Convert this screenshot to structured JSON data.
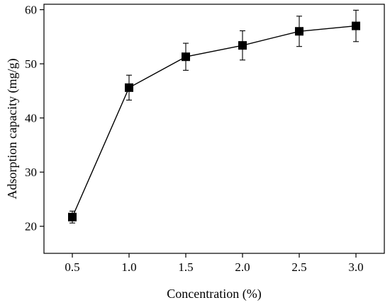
{
  "chart_data": {
    "type": "line",
    "xlabel": "Concentration (%)",
    "ylabel": "Adsorption capacity (mg/g)",
    "xlim": [
      0.25,
      3.25
    ],
    "ylim": [
      15,
      61
    ],
    "xticks": [
      0.5,
      1.0,
      1.5,
      2.0,
      2.5,
      3.0
    ],
    "xtick_labels": [
      "0.5",
      "1.0",
      "1.5",
      "2.0",
      "2.5",
      "3.0"
    ],
    "yticks": [
      20,
      30,
      40,
      50,
      60
    ],
    "ytick_labels": [
      "20",
      "30",
      "40",
      "50",
      "60"
    ],
    "grid": false,
    "marker": "square",
    "series": [
      {
        "x": [
          0.5,
          1.0,
          1.5,
          2.0,
          2.5,
          3.0
        ],
        "y": [
          21.7,
          45.6,
          51.3,
          53.4,
          56.0,
          57.0
        ],
        "error": [
          1.1,
          2.3,
          2.5,
          2.7,
          2.8,
          2.9
        ]
      }
    ]
  }
}
